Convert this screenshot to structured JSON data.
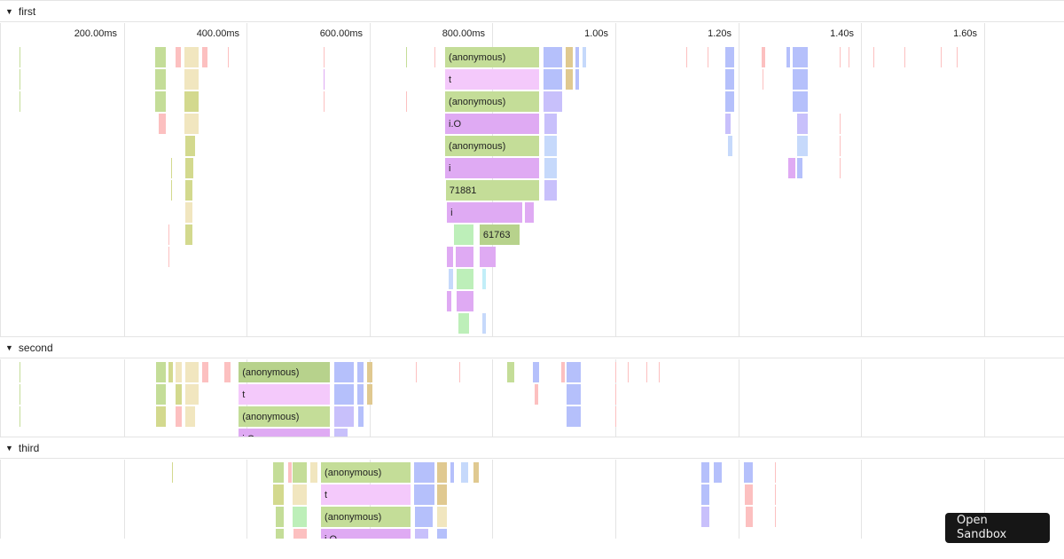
{
  "colors": {
    "green": "#c4dd98",
    "dgreen": "#b7d28c",
    "pinkl": "#f4c9fb",
    "purple": "#dfaaf3",
    "blue": "#b5c0fb",
    "lav": "#c8c0fb",
    "tan": "#e0c990",
    "beige": "#f1e6bf",
    "olive": "#d3d98e",
    "pink": "#fcc0c0",
    "lgreen": "#bdefb9",
    "lblue": "#c6d9fb",
    "cyan": "#c2eef8"
  },
  "ticks": [
    "200.00ms",
    "400.00ms",
    "600.00ms",
    "800.00ms",
    "1.00s",
    "1.20s",
    "1.40s",
    "1.60s"
  ],
  "tick_ms": [
    200,
    400,
    600,
    800,
    1000,
    1200,
    1400,
    1600
  ],
  "sections": [
    {
      "name": "first",
      "frames": [
        [
          0,
          251,
          270,
          "green",
          ""
        ],
        [
          0,
          284,
          294,
          "pink",
          ""
        ],
        [
          0,
          299,
          323,
          "beige",
          ""
        ],
        [
          0,
          328,
          338,
          "pink",
          ""
        ],
        [
          0,
          723,
          877,
          "green",
          "(anonymous)"
        ],
        [
          0,
          883,
          915,
          "blue",
          ""
        ],
        [
          0,
          919,
          932,
          "tan",
          ""
        ],
        [
          0,
          935,
          941,
          "blue",
          ""
        ],
        [
          0,
          947,
          951,
          "lblue",
          ""
        ],
        [
          0,
          1179,
          1195,
          "blue",
          ""
        ],
        [
          0,
          1238,
          1242,
          "pink",
          ""
        ],
        [
          0,
          1279,
          1286,
          "blue",
          ""
        ],
        [
          0,
          1289,
          1315,
          "blue",
          ""
        ],
        [
          1,
          251,
          270,
          "green",
          ""
        ],
        [
          1,
          299,
          323,
          "beige",
          ""
        ],
        [
          1,
          723,
          877,
          "pinkl",
          "t"
        ],
        [
          1,
          883,
          915,
          "blue",
          ""
        ],
        [
          1,
          919,
          932,
          "tan",
          ""
        ],
        [
          1,
          935,
          941,
          "blue",
          ""
        ],
        [
          1,
          1179,
          1195,
          "blue",
          ""
        ],
        [
          1,
          1289,
          1315,
          "blue",
          ""
        ],
        [
          2,
          251,
          270,
          "green",
          ""
        ],
        [
          2,
          299,
          323,
          "olive",
          ""
        ],
        [
          2,
          723,
          877,
          "green",
          "(anonymous)"
        ],
        [
          2,
          883,
          915,
          "lav",
          ""
        ],
        [
          2,
          1179,
          1195,
          "blue",
          ""
        ],
        [
          2,
          1289,
          1315,
          "blue",
          ""
        ],
        [
          3,
          257,
          270,
          "pink",
          ""
        ],
        [
          3,
          299,
          323,
          "beige",
          ""
        ],
        [
          3,
          723,
          877,
          "purple",
          "i.O"
        ],
        [
          3,
          885,
          906,
          "lav",
          ""
        ],
        [
          3,
          1179,
          1189,
          "lav",
          ""
        ],
        [
          3,
          1296,
          1315,
          "lav",
          ""
        ],
        [
          4,
          300,
          317,
          "olive",
          ""
        ],
        [
          4,
          723,
          877,
          "green",
          "(anonymous)"
        ],
        [
          4,
          885,
          906,
          "lblue",
          ""
        ],
        [
          4,
          1183,
          1192,
          "lblue",
          ""
        ],
        [
          4,
          1296,
          1315,
          "lblue",
          ""
        ],
        [
          5,
          300,
          315,
          "olive",
          ""
        ],
        [
          5,
          723,
          877,
          "purple",
          "i"
        ],
        [
          5,
          885,
          906,
          "lblue",
          ""
        ],
        [
          5,
          1281,
          1294,
          "purple",
          ""
        ],
        [
          5,
          1296,
          1306,
          "blue",
          ""
        ],
        [
          6,
          300,
          313,
          "olive",
          ""
        ],
        [
          6,
          724,
          877,
          "green",
          "71881"
        ],
        [
          6,
          885,
          906,
          "lav",
          ""
        ],
        [
          7,
          300,
          313,
          "beige",
          ""
        ],
        [
          7,
          726,
          850,
          "purple",
          "i"
        ],
        [
          7,
          853,
          869,
          "purple",
          ""
        ],
        [
          8,
          300,
          313,
          "olive",
          ""
        ],
        [
          8,
          737,
          771,
          "lgreen",
          ""
        ],
        [
          8,
          779,
          846,
          "dgreen",
          "61763"
        ],
        [
          9,
          726,
          737,
          "purple",
          ""
        ],
        [
          9,
          740,
          770,
          "purple",
          ""
        ],
        [
          9,
          779,
          806,
          "purple",
          ""
        ],
        [
          10,
          728,
          737,
          "lblue",
          ""
        ],
        [
          10,
          741,
          770,
          "lgreen",
          ""
        ],
        [
          10,
          783,
          790,
          "cyan",
          ""
        ],
        [
          11,
          726,
          735,
          "purple",
          ""
        ],
        [
          11,
          741,
          770,
          "purple",
          ""
        ],
        [
          12,
          745,
          763,
          "lgreen",
          ""
        ],
        [
          12,
          783,
          790,
          "lblue",
          ""
        ]
      ],
      "slivers": [
        [
          0,
          30,
          "green"
        ],
        [
          0,
          370,
          "pink"
        ],
        [
          0,
          525,
          "pink"
        ],
        [
          0,
          660,
          "green"
        ],
        [
          0,
          705,
          "pink"
        ],
        [
          0,
          1115,
          "pink"
        ],
        [
          0,
          1150,
          "pink"
        ],
        [
          0,
          1365,
          "pink"
        ],
        [
          0,
          1380,
          "pink"
        ],
        [
          0,
          1420,
          "pink"
        ],
        [
          0,
          1470,
          "pink"
        ],
        [
          0,
          1530,
          "pink"
        ],
        [
          0,
          1555,
          "pink"
        ],
        [
          1,
          30,
          "green"
        ],
        [
          1,
          525,
          "purple"
        ],
        [
          1,
          1240,
          "pink"
        ],
        [
          2,
          30,
          "green"
        ],
        [
          2,
          525,
          "pink"
        ],
        [
          2,
          660,
          "pink"
        ],
        [
          3,
          1365,
          "pink"
        ],
        [
          4,
          1365,
          "pink"
        ],
        [
          5,
          1365,
          "pink"
        ],
        [
          5,
          277,
          "olive"
        ],
        [
          6,
          277,
          "olive"
        ],
        [
          8,
          273,
          "pink"
        ],
        [
          9,
          273,
          "pink"
        ]
      ]
    },
    {
      "name": "second",
      "frames": [
        [
          0,
          253,
          270,
          "green",
          ""
        ],
        [
          0,
          273,
          281,
          "olive",
          ""
        ],
        [
          0,
          284,
          296,
          "beige",
          ""
        ],
        [
          0,
          300,
          323,
          "beige",
          ""
        ],
        [
          0,
          328,
          339,
          "pink",
          ""
        ],
        [
          0,
          364,
          375,
          "pink",
          ""
        ],
        [
          0,
          387,
          537,
          "dgreen",
          "(anonymous)"
        ],
        [
          0,
          543,
          576,
          "blue",
          ""
        ],
        [
          0,
          580,
          592,
          "blue",
          ""
        ],
        [
          0,
          596,
          606,
          "tan",
          ""
        ],
        [
          0,
          824,
          837,
          "green",
          ""
        ],
        [
          0,
          866,
          877,
          "blue",
          ""
        ],
        [
          0,
          912,
          918,
          "pink",
          ""
        ],
        [
          0,
          921,
          945,
          "blue",
          ""
        ],
        [
          1,
          253,
          270,
          "green",
          ""
        ],
        [
          1,
          284,
          296,
          "olive",
          ""
        ],
        [
          1,
          300,
          323,
          "beige",
          ""
        ],
        [
          1,
          387,
          537,
          "pinkl",
          "t"
        ],
        [
          1,
          543,
          576,
          "blue",
          ""
        ],
        [
          1,
          580,
          592,
          "blue",
          ""
        ],
        [
          1,
          596,
          606,
          "tan",
          ""
        ],
        [
          1,
          869,
          875,
          "pink",
          ""
        ],
        [
          1,
          921,
          945,
          "blue",
          ""
        ],
        [
          2,
          253,
          270,
          "olive",
          ""
        ],
        [
          2,
          284,
          296,
          "pink",
          ""
        ],
        [
          2,
          300,
          318,
          "beige",
          ""
        ],
        [
          2,
          387,
          537,
          "green",
          "(anonymous)"
        ],
        [
          2,
          543,
          576,
          "lav",
          ""
        ],
        [
          2,
          581,
          592,
          "blue",
          ""
        ],
        [
          2,
          921,
          945,
          "blue",
          ""
        ],
        [
          3,
          387,
          537,
          "purple",
          "i.O"
        ],
        [
          3,
          543,
          566,
          "lav",
          ""
        ]
      ],
      "slivers": [
        [
          0,
          30,
          "green"
        ],
        [
          0,
          675,
          "pink"
        ],
        [
          0,
          746,
          "pink"
        ],
        [
          0,
          1000,
          "pink"
        ],
        [
          0,
          1020,
          "pink"
        ],
        [
          0,
          1050,
          "pink"
        ],
        [
          0,
          1070,
          "pink"
        ],
        [
          1,
          30,
          "green"
        ],
        [
          1,
          1000,
          "pink"
        ],
        [
          2,
          30,
          "green"
        ],
        [
          2,
          1000,
          "pink"
        ]
      ]
    },
    {
      "name": "third",
      "frames": [
        [
          0,
          443,
          462,
          "green",
          ""
        ],
        [
          0,
          468,
          472,
          "pink",
          ""
        ],
        [
          0,
          475,
          499,
          "green",
          ""
        ],
        [
          0,
          503,
          516,
          "beige",
          ""
        ],
        [
          0,
          521,
          668,
          "green",
          "(anonymous)"
        ],
        [
          0,
          672,
          707,
          "blue",
          ""
        ],
        [
          0,
          710,
          727,
          "tan",
          ""
        ],
        [
          0,
          731,
          737,
          "blue",
          ""
        ],
        [
          0,
          749,
          762,
          "lblue",
          ""
        ],
        [
          0,
          769,
          779,
          "tan",
          ""
        ],
        [
          0,
          1140,
          1154,
          "blue",
          ""
        ],
        [
          0,
          1160,
          1175,
          "blue",
          ""
        ],
        [
          0,
          1209,
          1225,
          "blue",
          ""
        ],
        [
          1,
          443,
          462,
          "olive",
          ""
        ],
        [
          1,
          475,
          499,
          "beige",
          ""
        ],
        [
          1,
          521,
          668,
          "pinkl",
          "t"
        ],
        [
          1,
          672,
          707,
          "blue",
          ""
        ],
        [
          1,
          710,
          727,
          "tan",
          ""
        ],
        [
          1,
          1140,
          1154,
          "blue",
          ""
        ],
        [
          1,
          1210,
          1225,
          "pink",
          ""
        ],
        [
          2,
          447,
          462,
          "green",
          ""
        ],
        [
          2,
          475,
          499,
          "lgreen",
          ""
        ],
        [
          2,
          521,
          668,
          "green",
          "(anonymous)"
        ],
        [
          2,
          674,
          704,
          "blue",
          ""
        ],
        [
          2,
          710,
          727,
          "beige",
          ""
        ],
        [
          2,
          1140,
          1154,
          "lav",
          ""
        ],
        [
          2,
          1212,
          1225,
          "pink",
          ""
        ],
        [
          3,
          447,
          462,
          "green",
          ""
        ],
        [
          3,
          476,
          499,
          "pink",
          ""
        ],
        [
          3,
          521,
          668,
          "purple",
          "i.O"
        ],
        [
          3,
          674,
          697,
          "lav",
          ""
        ],
        [
          3,
          710,
          727,
          "blue",
          ""
        ]
      ],
      "slivers": [
        [
          0,
          279,
          "olive"
        ],
        [
          0,
          1260,
          "pink"
        ],
        [
          1,
          1260,
          "pink"
        ],
        [
          2,
          1260,
          "pink"
        ]
      ]
    }
  ],
  "sandbox_button": {
    "line1": "Open",
    "line2": "Sandbox"
  }
}
